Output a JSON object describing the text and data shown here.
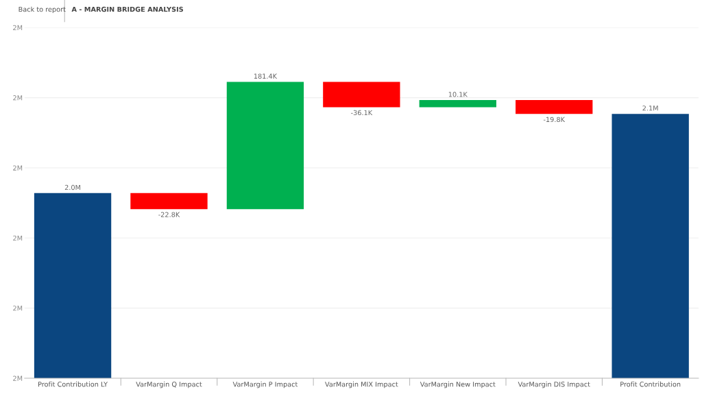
{
  "chart_data": {
    "type": "bar",
    "title": "A - MARGIN BRIDGE ANALYSIS",
    "annotations": [
      "Back to report"
    ],
    "categories": [
      "Profit Contribution LY",
      "VarMargin Q Impact",
      "VarMargin P Impact",
      "VarMargin MIX Impact",
      "VarMargin New Impact",
      "VarMargin DIS Impact",
      "Profit Contribution"
    ],
    "values": [
      1964000,
      -22800,
      181400,
      -36100,
      10100,
      -19800,
      2077000
    ],
    "base": [
      null,
      1964000,
      1941200,
      2122600,
      2086500,
      2096600,
      null
    ],
    "colors": [
      "#0b4680",
      "#ff0000",
      "#00b050",
      "#ff0000",
      "#00b050",
      "#ff0000",
      "#0b4680"
    ],
    "value_labels": [
      "2.0M",
      "-22.8K",
      "181.4K",
      "-36.1K",
      "10.1K",
      "-19.8K",
      "2.1M"
    ],
    "ylim": [
      1700000,
      2200000
    ],
    "yticks": [
      {
        "value": 1700000,
        "label": "2M"
      },
      {
        "value": 1800000,
        "label": "2M"
      },
      {
        "value": 1900000,
        "label": "2M"
      },
      {
        "value": 2000000,
        "label": "2M"
      },
      {
        "value": 2100000,
        "label": "2M"
      },
      {
        "value": 2200000,
        "label": "2M"
      }
    ],
    "grid": "y",
    "legend": false
  }
}
